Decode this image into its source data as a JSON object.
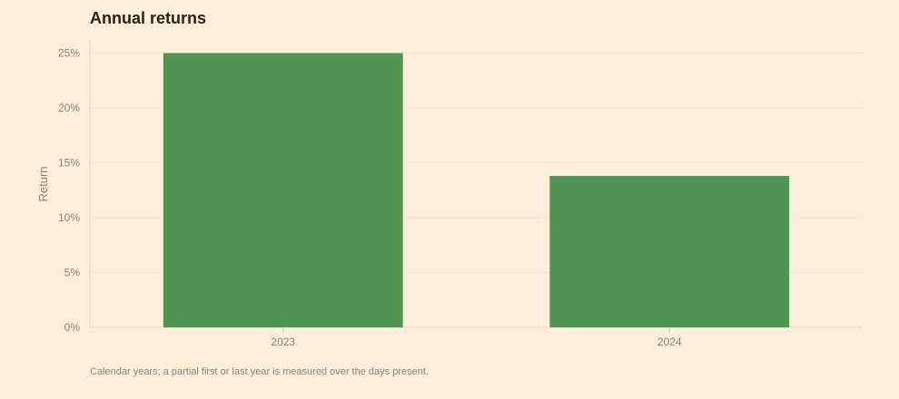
{
  "chart_data": {
    "type": "bar",
    "title": "Annual returns",
    "ylabel": "Return",
    "xlabel": "",
    "categories": [
      "2023",
      "2024"
    ],
    "values": [
      25.0,
      13.8
    ],
    "ylim": [
      0,
      26.2
    ],
    "yticks": [
      0,
      5,
      10,
      15,
      20,
      25
    ],
    "ytick_suffix": "%",
    "grid": true,
    "bar_color": "#4f9455",
    "footnote": "Calendar years; a partial first or last year is measured over the days present."
  }
}
